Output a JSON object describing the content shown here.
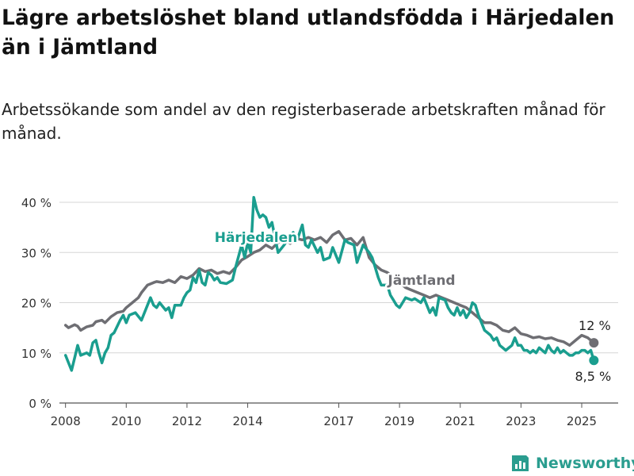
{
  "title": "Lägre arbetslöshet bland utlandsfödda i Härjedalen än i Jämtland",
  "subtitle": "Arbetssökande som andel av den registerbaserade arbetskraften månad för månad.",
  "brand": {
    "name": "Newsworthy",
    "icon": "newsworthy-logo-icon",
    "color": "#2a9d8f"
  },
  "chart_data": {
    "type": "line",
    "title": "",
    "xlabel": "",
    "ylabel": "",
    "ylim": [
      0,
      40
    ],
    "xlim": [
      2007.8,
      2026.2
    ],
    "grid": true,
    "y_ticks": [
      0,
      10,
      20,
      30,
      40
    ],
    "y_tick_labels": [
      "0 %",
      "10 %",
      "20 %",
      "30 %",
      "40 %"
    ],
    "x_ticks": [
      2008,
      2010,
      2012,
      2014,
      2017,
      2019,
      2021,
      2023,
      2025
    ],
    "x_tick_labels": [
      "2008",
      "2010",
      "2012",
      "2014",
      "2017",
      "2019",
      "2021",
      "2023",
      "2025"
    ],
    "series": [
      {
        "name": "Jämtland",
        "color": "#6e6e73",
        "end_label": "12 %",
        "points": [
          [
            2008.0,
            15.5
          ],
          [
            2008.1,
            15.0
          ],
          [
            2008.3,
            15.6
          ],
          [
            2008.4,
            15.3
          ],
          [
            2008.5,
            14.5
          ],
          [
            2008.7,
            15.2
          ],
          [
            2008.9,
            15.5
          ],
          [
            2009.0,
            16.2
          ],
          [
            2009.2,
            16.5
          ],
          [
            2009.3,
            16.0
          ],
          [
            2009.5,
            17.2
          ],
          [
            2009.7,
            18.0
          ],
          [
            2009.9,
            18.3
          ],
          [
            2010.0,
            19.0
          ],
          [
            2010.2,
            20.0
          ],
          [
            2010.4,
            21.0
          ],
          [
            2010.5,
            22.0
          ],
          [
            2010.7,
            23.5
          ],
          [
            2010.9,
            24.0
          ],
          [
            2011.0,
            24.2
          ],
          [
            2011.2,
            24.0
          ],
          [
            2011.4,
            24.5
          ],
          [
            2011.6,
            24.0
          ],
          [
            2011.8,
            25.2
          ],
          [
            2012.0,
            24.8
          ],
          [
            2012.2,
            25.5
          ],
          [
            2012.4,
            26.8
          ],
          [
            2012.6,
            26.2
          ],
          [
            2012.8,
            26.5
          ],
          [
            2013.0,
            25.8
          ],
          [
            2013.2,
            26.2
          ],
          [
            2013.4,
            25.8
          ],
          [
            2013.6,
            27.0
          ],
          [
            2013.8,
            28.5
          ],
          [
            2014.0,
            29.2
          ],
          [
            2014.2,
            30.0
          ],
          [
            2014.4,
            30.5
          ],
          [
            2014.6,
            31.5
          ],
          [
            2014.8,
            30.8
          ],
          [
            2015.0,
            32.0
          ],
          [
            2015.2,
            32.5
          ],
          [
            2015.4,
            31.8
          ],
          [
            2015.6,
            32.8
          ],
          [
            2015.8,
            32.5
          ],
          [
            2016.0,
            33.0
          ],
          [
            2016.2,
            32.5
          ],
          [
            2016.4,
            33.0
          ],
          [
            2016.6,
            32.0
          ],
          [
            2016.8,
            33.5
          ],
          [
            2017.0,
            34.2
          ],
          [
            2017.2,
            32.5
          ],
          [
            2017.4,
            32.8
          ],
          [
            2017.6,
            31.5
          ],
          [
            2017.8,
            33.0
          ],
          [
            2018.0,
            29.0
          ],
          [
            2018.2,
            27.5
          ],
          [
            2018.4,
            26.5
          ],
          [
            2018.6,
            26.0
          ],
          [
            2018.8,
            25.0
          ],
          [
            2019.0,
            24.0
          ],
          [
            2019.2,
            23.0
          ],
          [
            2019.4,
            22.5
          ],
          [
            2019.6,
            22.0
          ],
          [
            2019.8,
            21.5
          ],
          [
            2020.0,
            21.0
          ],
          [
            2020.2,
            21.5
          ],
          [
            2020.4,
            21.0
          ],
          [
            2020.6,
            20.5
          ],
          [
            2020.8,
            20.0
          ],
          [
            2021.0,
            19.5
          ],
          [
            2021.2,
            19.0
          ],
          [
            2021.4,
            18.0
          ],
          [
            2021.6,
            17.0
          ],
          [
            2021.8,
            16.0
          ],
          [
            2022.0,
            16.0
          ],
          [
            2022.2,
            15.5
          ],
          [
            2022.4,
            14.5
          ],
          [
            2022.6,
            14.2
          ],
          [
            2022.8,
            15.0
          ],
          [
            2023.0,
            13.8
          ],
          [
            2023.2,
            13.5
          ],
          [
            2023.4,
            13.0
          ],
          [
            2023.6,
            13.2
          ],
          [
            2023.8,
            12.8
          ],
          [
            2024.0,
            13.0
          ],
          [
            2024.2,
            12.5
          ],
          [
            2024.4,
            12.2
          ],
          [
            2024.6,
            11.5
          ],
          [
            2024.8,
            12.5
          ],
          [
            2025.0,
            13.5
          ],
          [
            2025.2,
            13.0
          ],
          [
            2025.4,
            12.0
          ]
        ]
      },
      {
        "name": "Härjedalen",
        "color": "#1a9e8f",
        "end_label": "8,5 %",
        "points": [
          [
            2008.0,
            9.5
          ],
          [
            2008.1,
            8.0
          ],
          [
            2008.2,
            6.5
          ],
          [
            2008.3,
            9.0
          ],
          [
            2008.4,
            11.5
          ],
          [
            2008.5,
            9.5
          ],
          [
            2008.7,
            10.0
          ],
          [
            2008.8,
            9.5
          ],
          [
            2008.9,
            12.0
          ],
          [
            2009.0,
            12.5
          ],
          [
            2009.1,
            10.0
          ],
          [
            2009.2,
            8.0
          ],
          [
            2009.3,
            10.0
          ],
          [
            2009.4,
            11.0
          ],
          [
            2009.5,
            13.5
          ],
          [
            2009.6,
            14.0
          ],
          [
            2009.8,
            16.5
          ],
          [
            2009.9,
            17.5
          ],
          [
            2010.0,
            16.0
          ],
          [
            2010.1,
            17.5
          ],
          [
            2010.3,
            18.0
          ],
          [
            2010.5,
            16.5
          ],
          [
            2010.6,
            18.0
          ],
          [
            2010.7,
            19.5
          ],
          [
            2010.8,
            21.0
          ],
          [
            2010.9,
            19.5
          ],
          [
            2011.0,
            19.0
          ],
          [
            2011.1,
            20.0
          ],
          [
            2011.3,
            18.5
          ],
          [
            2011.4,
            19.0
          ],
          [
            2011.5,
            17.0
          ],
          [
            2011.6,
            19.5
          ],
          [
            2011.8,
            19.5
          ],
          [
            2011.9,
            21.0
          ],
          [
            2012.0,
            22.0
          ],
          [
            2012.1,
            22.5
          ],
          [
            2012.2,
            25.0
          ],
          [
            2012.3,
            24.0
          ],
          [
            2012.4,
            26.5
          ],
          [
            2012.5,
            24.0
          ],
          [
            2012.6,
            23.5
          ],
          [
            2012.7,
            26.0
          ],
          [
            2012.8,
            25.5
          ],
          [
            2012.9,
            24.5
          ],
          [
            2013.0,
            25.0
          ],
          [
            2013.1,
            24.0
          ],
          [
            2013.3,
            23.8
          ],
          [
            2013.5,
            24.5
          ],
          [
            2013.6,
            27.0
          ],
          [
            2013.8,
            31.5
          ],
          [
            2013.9,
            29.0
          ],
          [
            2014.0,
            32.0
          ],
          [
            2014.1,
            30.0
          ],
          [
            2014.2,
            41.0
          ],
          [
            2014.3,
            38.5
          ],
          [
            2014.4,
            37.0
          ],
          [
            2014.5,
            37.5
          ],
          [
            2014.6,
            37.0
          ],
          [
            2014.7,
            35.0
          ],
          [
            2014.8,
            36.0
          ],
          [
            2014.9,
            33.0
          ],
          [
            2015.0,
            30.0
          ],
          [
            2015.2,
            31.5
          ],
          [
            2015.3,
            32.5
          ],
          [
            2015.5,
            34.0
          ],
          [
            2015.6,
            32.0
          ],
          [
            2015.8,
            35.5
          ],
          [
            2015.9,
            31.5
          ],
          [
            2016.0,
            31.0
          ],
          [
            2016.1,
            32.5
          ],
          [
            2016.3,
            30.0
          ],
          [
            2016.4,
            31.0
          ],
          [
            2016.5,
            28.5
          ],
          [
            2016.7,
            29.0
          ],
          [
            2016.8,
            31.0
          ],
          [
            2016.9,
            29.5
          ],
          [
            2017.0,
            28.0
          ],
          [
            2017.2,
            32.5
          ],
          [
            2017.3,
            32.0
          ],
          [
            2017.5,
            31.5
          ],
          [
            2017.6,
            28.0
          ],
          [
            2017.8,
            31.5
          ],
          [
            2018.0,
            30.0
          ],
          [
            2018.1,
            29.0
          ],
          [
            2018.2,
            27.0
          ],
          [
            2018.3,
            25.0
          ],
          [
            2018.4,
            23.5
          ],
          [
            2018.6,
            23.5
          ],
          [
            2018.7,
            21.5
          ],
          [
            2018.8,
            20.5
          ],
          [
            2018.9,
            19.5
          ],
          [
            2019.0,
            19.0
          ],
          [
            2019.1,
            20.0
          ],
          [
            2019.2,
            21.0
          ],
          [
            2019.4,
            20.5
          ],
          [
            2019.5,
            20.8
          ],
          [
            2019.7,
            20.0
          ],
          [
            2019.8,
            21.0
          ],
          [
            2019.9,
            19.5
          ],
          [
            2020.0,
            18.0
          ],
          [
            2020.1,
            19.0
          ],
          [
            2020.2,
            17.5
          ],
          [
            2020.3,
            21.0
          ],
          [
            2020.5,
            20.5
          ],
          [
            2020.6,
            19.0
          ],
          [
            2020.7,
            18.0
          ],
          [
            2020.8,
            17.5
          ],
          [
            2020.9,
            19.0
          ],
          [
            2021.0,
            17.5
          ],
          [
            2021.1,
            18.5
          ],
          [
            2021.2,
            17.0
          ],
          [
            2021.3,
            18.0
          ],
          [
            2021.4,
            20.0
          ],
          [
            2021.5,
            19.5
          ],
          [
            2021.6,
            17.5
          ],
          [
            2021.7,
            16.0
          ],
          [
            2021.8,
            14.5
          ],
          [
            2021.9,
            14.0
          ],
          [
            2022.0,
            13.5
          ],
          [
            2022.1,
            12.5
          ],
          [
            2022.2,
            13.0
          ],
          [
            2022.3,
            11.5
          ],
          [
            2022.4,
            11.0
          ],
          [
            2022.5,
            10.5
          ],
          [
            2022.6,
            11.0
          ],
          [
            2022.7,
            11.5
          ],
          [
            2022.8,
            13.0
          ],
          [
            2022.9,
            11.5
          ],
          [
            2023.0,
            11.5
          ],
          [
            2023.1,
            10.5
          ],
          [
            2023.2,
            10.5
          ],
          [
            2023.3,
            10.0
          ],
          [
            2023.4,
            10.5
          ],
          [
            2023.5,
            10.0
          ],
          [
            2023.6,
            11.0
          ],
          [
            2023.7,
            10.5
          ],
          [
            2023.8,
            10.0
          ],
          [
            2023.9,
            11.5
          ],
          [
            2024.0,
            10.5
          ],
          [
            2024.1,
            10.0
          ],
          [
            2024.2,
            11.0
          ],
          [
            2024.3,
            10.0
          ],
          [
            2024.4,
            10.5
          ],
          [
            2024.5,
            10.0
          ],
          [
            2024.6,
            9.5
          ],
          [
            2024.7,
            9.5
          ],
          [
            2024.8,
            10.0
          ],
          [
            2024.9,
            10.0
          ],
          [
            2025.0,
            10.5
          ],
          [
            2025.1,
            10.5
          ],
          [
            2025.2,
            10.0
          ],
          [
            2025.3,
            10.5
          ],
          [
            2025.4,
            8.5
          ]
        ]
      }
    ],
    "legend": "inline series labels"
  }
}
